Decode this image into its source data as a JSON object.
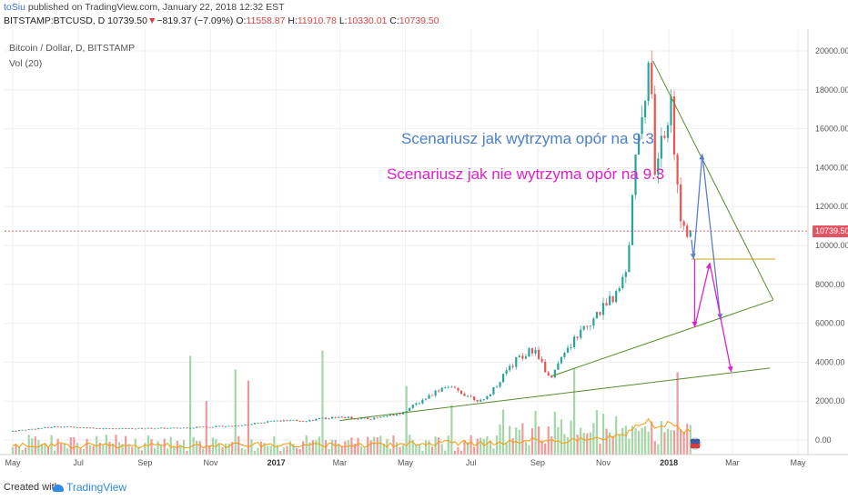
{
  "header": {
    "author": "toSiu",
    "published": " published on TradingView.com, January 22, 2018 12:32 EST"
  },
  "ohlc": {
    "symbol": "BITSTAMP:BTCUSD, D",
    "last": "10739.50",
    "change_arrow": "▼",
    "change": "−819.37 (−7.09%)",
    "o_label": "O:",
    "o": "11558.87",
    "h_label": "H:",
    "h": "11910.78",
    "l_label": "L:",
    "l": "10330.01",
    "c_label": "C:",
    "c": "10739.50"
  },
  "legend": {
    "title": "Bitcoin / Dollar, D, BITSTAMP",
    "volume": "Vol (20)"
  },
  "price_tag": "10739.50",
  "annotations": {
    "blue": "Scenariusz jak wytrzyma opór na 9.3",
    "pink": "Scenariusz jak nie wytrzyma opór na 9.3"
  },
  "footer": {
    "created": "Created with",
    "brand": "TradingView"
  },
  "colors": {
    "up": "#26a69a",
    "down": "#ef5350",
    "volume_up": "#a5d6a7",
    "volume_down": "#ef9a9a",
    "volume_ma": "#ff9800",
    "trend_green": "#5a8a2a",
    "resistance": "#d4a017",
    "scenario_blue": "#5b7fc8",
    "scenario_pink": "#e020d0",
    "price_line": "#e55462"
  },
  "chart_data": {
    "type": "candlestick",
    "title": "Bitcoin / Dollar, D, BITSTAMP",
    "y_ticks": [
      "20000.00",
      "18000.00",
      "16000.00",
      "14000.00",
      "12000.00",
      "10000.00",
      "8000.00",
      "6000.00",
      "4000.00",
      "2000.00",
      "0.00"
    ],
    "y_range": [
      0,
      20000
    ],
    "x_ticks": [
      "May",
      "Jul",
      "Sep",
      "Nov",
      "2017",
      "Mar",
      "May",
      "Jul",
      "Sep",
      "Nov",
      "2018",
      "Mar",
      "May"
    ],
    "x_range": [
      "2016-05-01",
      "2018-05-01"
    ],
    "last_price": 10739.5,
    "close_series": [
      {
        "date": "2016-05-01",
        "value": 450
      },
      {
        "date": "2016-06-15",
        "value": 700
      },
      {
        "date": "2016-08-01",
        "value": 580
      },
      {
        "date": "2016-10-01",
        "value": 610
      },
      {
        "date": "2016-12-01",
        "value": 750
      },
      {
        "date": "2017-01-01",
        "value": 980
      },
      {
        "date": "2017-02-01",
        "value": 1000
      },
      {
        "date": "2017-03-01",
        "value": 1180
      },
      {
        "date": "2017-04-01",
        "value": 1080
      },
      {
        "date": "2017-05-01",
        "value": 1400
      },
      {
        "date": "2017-06-10",
        "value": 2800
      },
      {
        "date": "2017-07-15",
        "value": 1950
      },
      {
        "date": "2017-08-15",
        "value": 4100
      },
      {
        "date": "2017-09-01",
        "value": 4700
      },
      {
        "date": "2017-09-15",
        "value": 3200
      },
      {
        "date": "2017-10-15",
        "value": 5700
      },
      {
        "date": "2017-11-10",
        "value": 7100
      },
      {
        "date": "2017-11-25",
        "value": 8500
      },
      {
        "date": "2017-12-07",
        "value": 16000
      },
      {
        "date": "2017-12-17",
        "value": 19200
      },
      {
        "date": "2017-12-22",
        "value": 13800
      },
      {
        "date": "2018-01-06",
        "value": 17000
      },
      {
        "date": "2018-01-16",
        "value": 11000
      },
      {
        "date": "2018-01-22",
        "value": 10739.5
      }
    ],
    "trend_lines": [
      {
        "name": "descending resistance",
        "from": {
          "date": "2017-12-17",
          "value": 19500
        },
        "to": {
          "date": "2018-04-08",
          "value": 7200
        }
      },
      {
        "name": "support 1",
        "from": {
          "date": "2017-09-15",
          "value": 3300
        },
        "to": {
          "date": "2018-04-08",
          "value": 7200
        }
      },
      {
        "name": "support 2",
        "from": {
          "date": "2017-03-01",
          "value": 1000
        },
        "to": {
          "date": "2018-04-05",
          "value": 3700
        }
      },
      {
        "name": "horizontal 9.3k",
        "from": {
          "date": "2018-01-22",
          "value": 9300
        },
        "to": {
          "date": "2018-04-10",
          "value": 9300
        }
      }
    ],
    "scenarios": [
      {
        "name": "blue",
        "path": [
          {
            "date": "2018-01-22",
            "value": 10300
          },
          {
            "date": "2018-01-24",
            "value": 9300
          },
          {
            "date": "2018-02-01",
            "value": 14700
          },
          {
            "date": "2018-02-18",
            "value": 6200
          }
        ]
      },
      {
        "name": "pink",
        "path": [
          {
            "date": "2018-01-25",
            "value": 9300
          },
          {
            "date": "2018-01-25",
            "value": 5800
          },
          {
            "date": "2018-02-08",
            "value": 9100
          },
          {
            "date": "2018-02-28",
            "value": 3500
          }
        ]
      }
    ]
  }
}
